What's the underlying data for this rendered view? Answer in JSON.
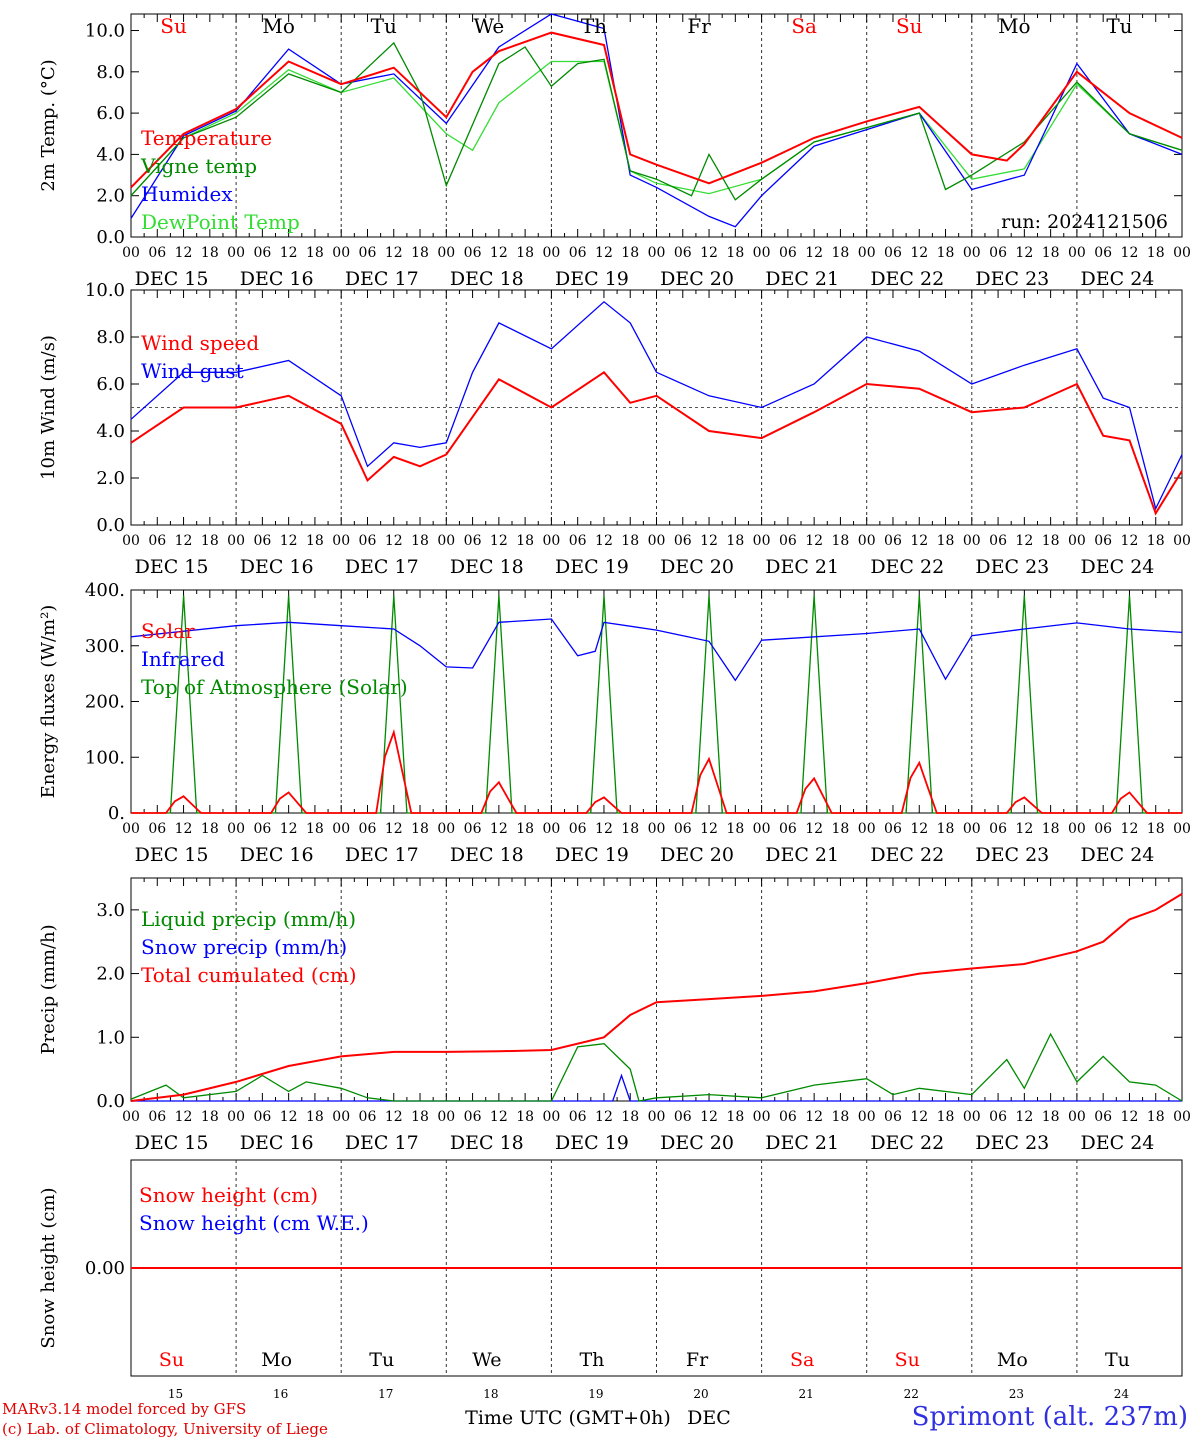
{
  "footer": {
    "credit_line1": "MARv3.14 model forced by GFS",
    "credit_line2": "(c) Lab. of Climatology, University of Liege",
    "xlabel": "Time UTC (GMT+0h)",
    "month": "DEC",
    "station": "Sprimont (alt. 237m)"
  },
  "days": {
    "weekdays": [
      "Su",
      "Mo",
      "Tu",
      "We",
      "Th",
      "Fr",
      "Sa",
      "Su",
      "Mo",
      "Tu"
    ],
    "weekend_flags": [
      true,
      false,
      false,
      false,
      false,
      false,
      true,
      true,
      false,
      false
    ],
    "date_labels": [
      "DEC 15",
      "DEC 16",
      "DEC 17",
      "DEC 18",
      "DEC 19",
      "DEC 20",
      "DEC 21",
      "DEC 22",
      "DEC 23",
      "DEC 24"
    ],
    "day_numbers": [
      "15",
      "16",
      "17",
      "18",
      "19",
      "20",
      "21",
      "22",
      "23",
      "24"
    ],
    "hour_ticks": [
      "00",
      "06",
      "12",
      "18"
    ],
    "final_tick": "00"
  },
  "colors": {
    "red": "#ff0000",
    "green": "#008a00",
    "blue": "#0000ff",
    "lightgreen": "#33dd33",
    "axis": "#000000",
    "weekend": "#ff0000"
  },
  "chart_data": [
    {
      "type": "line",
      "ylabel": "2m Temp. (°C)",
      "yticks": [
        "0.0",
        "2.0",
        "4.0",
        "6.0",
        "8.0",
        "10.0"
      ],
      "ylim": [
        0,
        10.8
      ],
      "annotation": "run: 2024121506",
      "x_unit": "hours since DEC 15 00 UTC",
      "legend": [
        "Temperature",
        "Vigne temp",
        "Humidex",
        "DewPoint Temp"
      ],
      "series": [
        {
          "name": "Temperature",
          "color": "red",
          "x": [
            0,
            12,
            24,
            36,
            48,
            60,
            72,
            78,
            84,
            96,
            108,
            114,
            120,
            132,
            144,
            156,
            168,
            180,
            192,
            200,
            204,
            216,
            228,
            240
          ],
          "y": [
            2.4,
            5.0,
            6.2,
            8.5,
            7.4,
            8.2,
            5.8,
            8.0,
            9.0,
            9.9,
            9.3,
            4.0,
            3.5,
            2.6,
            3.6,
            4.8,
            5.6,
            6.3,
            4.0,
            3.7,
            4.5,
            8.0,
            6.0,
            4.8
          ]
        },
        {
          "name": "Vigne temp",
          "color": "green",
          "x": [
            0,
            12,
            24,
            36,
            48,
            60,
            66,
            72,
            84,
            90,
            96,
            102,
            108,
            114,
            120,
            128,
            132,
            138,
            144,
            156,
            168,
            180,
            186,
            192,
            204,
            216,
            228,
            240
          ],
          "y": [
            2.0,
            4.8,
            5.8,
            7.9,
            7.0,
            9.4,
            7.0,
            2.5,
            8.4,
            9.2,
            7.3,
            8.4,
            8.6,
            3.2,
            2.8,
            2.0,
            4.0,
            1.8,
            2.8,
            4.6,
            5.3,
            6.0,
            2.3,
            3.0,
            4.6,
            7.5,
            5.0,
            4.2
          ]
        },
        {
          "name": "Humidex",
          "color": "blue",
          "x": [
            0,
            12,
            24,
            36,
            48,
            60,
            72,
            84,
            96,
            108,
            114,
            120,
            132,
            138,
            144,
            156,
            168,
            180,
            192,
            204,
            216,
            228,
            240
          ],
          "y": [
            0.9,
            4.9,
            6.1,
            9.1,
            7.4,
            7.9,
            5.5,
            9.2,
            10.8,
            10.1,
            3.0,
            2.4,
            1.0,
            0.5,
            2.0,
            4.4,
            5.2,
            6.0,
            2.3,
            3.0,
            8.4,
            5.0,
            4.0
          ]
        },
        {
          "name": "DewPoint Temp",
          "color": "lightgreen",
          "x": [
            0,
            12,
            24,
            36,
            48,
            60,
            72,
            78,
            84,
            96,
            108,
            114,
            120,
            132,
            144,
            156,
            168,
            180,
            192,
            204,
            216,
            228,
            240
          ],
          "y": [
            2.0,
            4.8,
            6.0,
            8.1,
            7.0,
            7.7,
            5.0,
            4.2,
            6.5,
            8.5,
            8.5,
            3.2,
            2.6,
            2.1,
            2.8,
            4.6,
            5.3,
            6.0,
            2.8,
            3.3,
            7.4,
            5.0,
            4.2
          ]
        }
      ]
    },
    {
      "type": "line",
      "ylabel": "10m Wind (m/s)",
      "yticks": [
        "0.0",
        "2.0",
        "4.0",
        "6.0",
        "8.0",
        "10.0"
      ],
      "ylim": [
        0,
        10.0
      ],
      "reference_line": 5.0,
      "legend": [
        "Wind speed",
        "Wind gust"
      ],
      "series": [
        {
          "name": "Wind speed",
          "color": "red",
          "x": [
            0,
            12,
            24,
            36,
            48,
            54,
            60,
            66,
            72,
            84,
            96,
            108,
            114,
            120,
            132,
            144,
            156,
            168,
            180,
            192,
            204,
            216,
            222,
            228,
            234,
            240
          ],
          "y": [
            3.5,
            5.0,
            5.0,
            5.5,
            4.3,
            1.9,
            2.9,
            2.5,
            3.0,
            6.2,
            5.0,
            6.5,
            5.2,
            5.5,
            4.0,
            3.7,
            4.8,
            6.0,
            5.8,
            4.8,
            5.0,
            6.0,
            3.8,
            3.6,
            0.5,
            2.3
          ]
        },
        {
          "name": "Wind gust",
          "color": "blue",
          "x": [
            0,
            12,
            24,
            36,
            48,
            54,
            60,
            66,
            72,
            78,
            84,
            96,
            108,
            114,
            120,
            132,
            144,
            156,
            168,
            180,
            192,
            204,
            216,
            222,
            228,
            234,
            240
          ],
          "y": [
            4.5,
            6.5,
            6.5,
            7.0,
            5.5,
            2.5,
            3.5,
            3.3,
            3.5,
            6.5,
            8.6,
            7.5,
            9.5,
            8.6,
            6.5,
            5.5,
            5.0,
            6.0,
            8.0,
            7.4,
            6.0,
            6.8,
            7.5,
            5.4,
            5.0,
            0.7,
            3.0
          ]
        }
      ]
    },
    {
      "type": "line",
      "ylabel": "Energy fluxes (W/m²)",
      "yticks": [
        "0.",
        "100.",
        "200.",
        "300.",
        "400."
      ],
      "ylim": [
        0,
        400
      ],
      "legend": [
        "Solar",
        "Infrared",
        "Top of Atmosphere (Solar)"
      ],
      "solar_peaks": [
        30,
        37,
        145,
        55,
        28,
        97,
        62,
        90,
        28,
        37
      ],
      "toa_peak": 390,
      "series": [
        {
          "name": "Infrared",
          "color": "blue",
          "x": [
            0,
            24,
            36,
            48,
            60,
            66,
            72,
            78,
            84,
            96,
            102,
            106,
            108,
            120,
            132,
            138,
            144,
            168,
            180,
            186,
            192,
            204,
            216,
            228,
            240
          ],
          "y": [
            316,
            336,
            342,
            336,
            330,
            300,
            262,
            260,
            342,
            348,
            282,
            290,
            342,
            328,
            308,
            238,
            310,
            322,
            330,
            240,
            318,
            330,
            341,
            330,
            324
          ]
        }
      ]
    },
    {
      "type": "line",
      "ylabel": "Precip (mm/h)",
      "yticks": [
        "0.0",
        "1.0",
        "2.0",
        "3.0"
      ],
      "ylim": [
        0,
        3.5
      ],
      "legend": [
        "Liquid precip (mm/h)",
        "Snow precip (mm/h)",
        "Total cumulated (cm)"
      ],
      "series": [
        {
          "name": "Total cumulated (cm)",
          "color": "red",
          "x": [
            0,
            12,
            24,
            36,
            48,
            60,
            72,
            84,
            96,
            108,
            114,
            120,
            132,
            144,
            156,
            168,
            180,
            192,
            204,
            216,
            222,
            228,
            234,
            240
          ],
          "y": [
            0.0,
            0.1,
            0.3,
            0.55,
            0.7,
            0.77,
            0.77,
            0.78,
            0.8,
            1.0,
            1.35,
            1.55,
            1.6,
            1.65,
            1.72,
            1.85,
            2.0,
            2.08,
            2.15,
            2.35,
            2.5,
            2.85,
            3.0,
            3.25
          ]
        },
        {
          "name": "Liquid precip (mm/h)",
          "color": "green",
          "x": [
            0,
            8,
            12,
            24,
            30,
            36,
            40,
            48,
            54,
            60,
            96,
            102,
            108,
            114,
            116,
            120,
            132,
            144,
            156,
            168,
            174,
            180,
            192,
            200,
            204,
            210,
            216,
            222,
            228,
            234,
            240
          ],
          "y": [
            0.03,
            0.25,
            0.05,
            0.15,
            0.4,
            0.15,
            0.3,
            0.2,
            0.05,
            0.0,
            0.0,
            0.85,
            0.9,
            0.5,
            0.0,
            0.05,
            0.1,
            0.05,
            0.25,
            0.35,
            0.1,
            0.2,
            0.1,
            0.65,
            0.2,
            1.05,
            0.3,
            0.7,
            0.3,
            0.25,
            0.0
          ]
        },
        {
          "name": "Snow precip (mm/h)",
          "color": "blue",
          "x": [
            0,
            110,
            112,
            114,
            116,
            240
          ],
          "y": [
            0,
            0,
            0.4,
            0,
            0,
            0
          ]
        }
      ]
    },
    {
      "type": "line",
      "ylabel": "Snow height (cm)",
      "yticks": [
        "0.00"
      ],
      "ylim": [
        -1,
        1
      ],
      "legend": [
        "Snow height (cm)",
        "Snow height (cm W.E.)"
      ],
      "series": [
        {
          "name": "Snow height (cm)",
          "color": "red",
          "x": [
            0,
            240
          ],
          "y": [
            0,
            0
          ]
        }
      ]
    }
  ]
}
